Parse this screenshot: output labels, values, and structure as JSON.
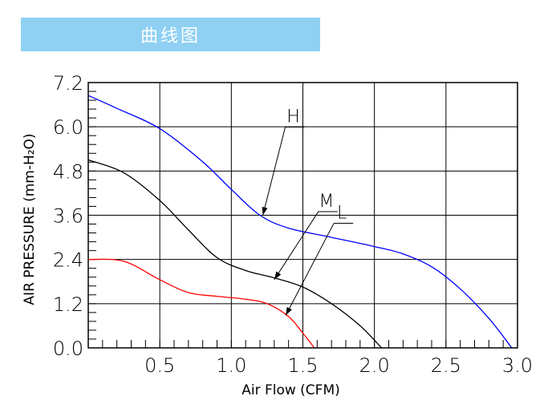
{
  "header": {
    "title": "曲线图",
    "background": "#8fd0f3"
  },
  "chart_data": {
    "type": "line",
    "xlabel": "Air Flow (CFM)",
    "ylabel": "AIR PRESSURE (mm-H₂O)",
    "xlim": [
      0,
      3.0
    ],
    "ylim": [
      0,
      7.2
    ],
    "xticks": [
      "0.5",
      "1.0",
      "1.5",
      "2.0",
      "2.5",
      "3.0"
    ],
    "yticks": [
      "0.0",
      "1.2",
      "2.4",
      "3.6",
      "4.8",
      "6.0",
      "7.2"
    ],
    "grid": true,
    "series": [
      {
        "name": "H",
        "color": "#0000ff",
        "points": [
          [
            0,
            6.85
          ],
          [
            0.2,
            6.5
          ],
          [
            0.5,
            5.95
          ],
          [
            0.8,
            5.05
          ],
          [
            1.0,
            4.3
          ],
          [
            1.2,
            3.6
          ],
          [
            1.4,
            3.25
          ],
          [
            1.7,
            3.0
          ],
          [
            2.0,
            2.75
          ],
          [
            2.2,
            2.55
          ],
          [
            2.4,
            2.2
          ],
          [
            2.6,
            1.6
          ],
          [
            2.8,
            0.8
          ],
          [
            2.96,
            0.0
          ]
        ]
      },
      {
        "name": "M",
        "color": "#000000",
        "points": [
          [
            0,
            5.1
          ],
          [
            0.25,
            4.75
          ],
          [
            0.5,
            4.0
          ],
          [
            0.7,
            3.2
          ],
          [
            0.9,
            2.45
          ],
          [
            1.1,
            2.1
          ],
          [
            1.3,
            1.9
          ],
          [
            1.5,
            1.65
          ],
          [
            1.7,
            1.2
          ],
          [
            1.9,
            0.6
          ],
          [
            2.05,
            0.0
          ]
        ]
      },
      {
        "name": "L",
        "color": "#ff0000",
        "points": [
          [
            0,
            2.4
          ],
          [
            0.25,
            2.35
          ],
          [
            0.5,
            1.85
          ],
          [
            0.7,
            1.5
          ],
          [
            0.9,
            1.4
          ],
          [
            1.1,
            1.32
          ],
          [
            1.25,
            1.2
          ],
          [
            1.4,
            0.85
          ],
          [
            1.5,
            0.4
          ],
          [
            1.58,
            0.0
          ]
        ]
      }
    ],
    "labels": [
      {
        "text": "H",
        "series": "H",
        "at": [
          1.22,
          3.6
        ]
      },
      {
        "text": "M",
        "series": "M",
        "at": [
          1.3,
          1.85
        ]
      },
      {
        "text": "L",
        "series": "L",
        "at": [
          1.38,
          0.88
        ]
      }
    ]
  }
}
